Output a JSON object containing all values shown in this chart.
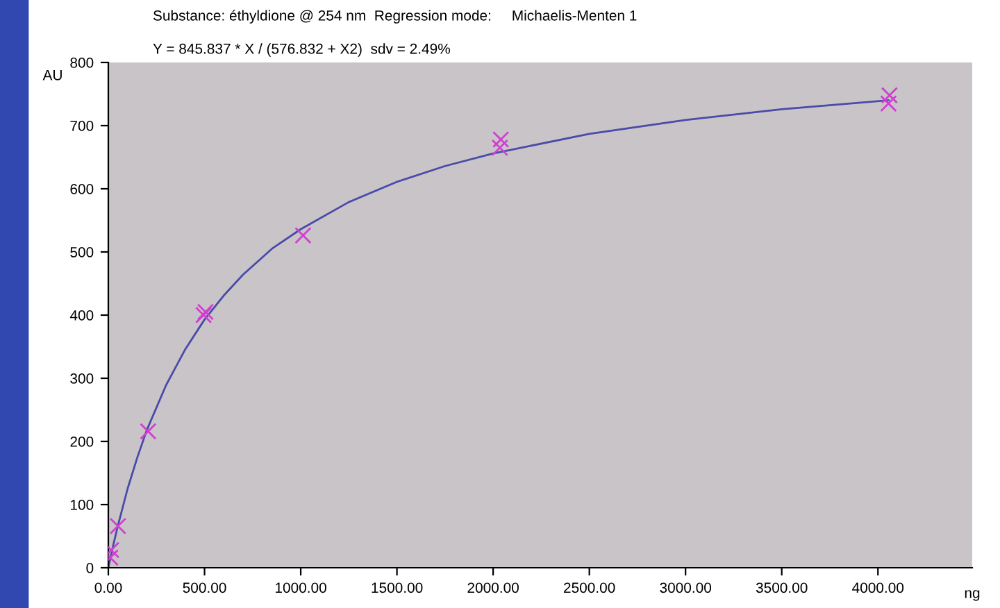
{
  "chart_data": {
    "type": "scatter",
    "title": "Substance: éthyldione @ 254 nm  Regression mode:     Michaelis-Menten 1",
    "subtitle": "Y = 845.837 * X / (576.832 + X2)  sdv = 2.49%",
    "xlabel": "ng",
    "ylabel": "AU",
    "series": [
      {
        "type": "line",
        "color": "#4a4aa8",
        "x": [
          0,
          25,
          50,
          100,
          150,
          200,
          300,
          400,
          500,
          600,
          700,
          850,
          1000,
          1250,
          1500,
          1750,
          2000,
          2500,
          3000,
          3500,
          4055
        ],
        "values": [
          0,
          35,
          67,
          125,
          174,
          218,
          289,
          346,
          393,
          431,
          464,
          505,
          536,
          579,
          611,
          636,
          656,
          687,
          709,
          726,
          740
        ]
      },
      {
        "color": "#d040d0",
        "marker": "cross",
        "x": [
          10,
          15,
          50,
          207,
          495,
          505,
          1012,
          2035,
          2040,
          4055,
          4060
        ],
        "values": [
          16,
          28,
          66,
          216,
          400,
          405,
          526,
          665,
          678,
          735,
          748
        ]
      }
    ],
    "xlim": [
      0,
      4490
    ],
    "ylim": [
      0,
      800
    ],
    "xticks": [
      {
        "value": 0,
        "label": "0.00"
      },
      {
        "value": 500,
        "label": "500.00"
      },
      {
        "value": 1000,
        "label": "1000.00"
      },
      {
        "value": 1500,
        "label": "1500.00"
      },
      {
        "value": 2000,
        "label": "2000.00"
      },
      {
        "value": 2500,
        "label": "2500.00"
      },
      {
        "value": 3000,
        "label": "3000.00"
      },
      {
        "value": 3500,
        "label": "3500.00"
      },
      {
        "value": 4000,
        "label": "4000.00"
      }
    ],
    "yticks": [
      0,
      100,
      200,
      300,
      400,
      500,
      600,
      700,
      800
    ]
  }
}
